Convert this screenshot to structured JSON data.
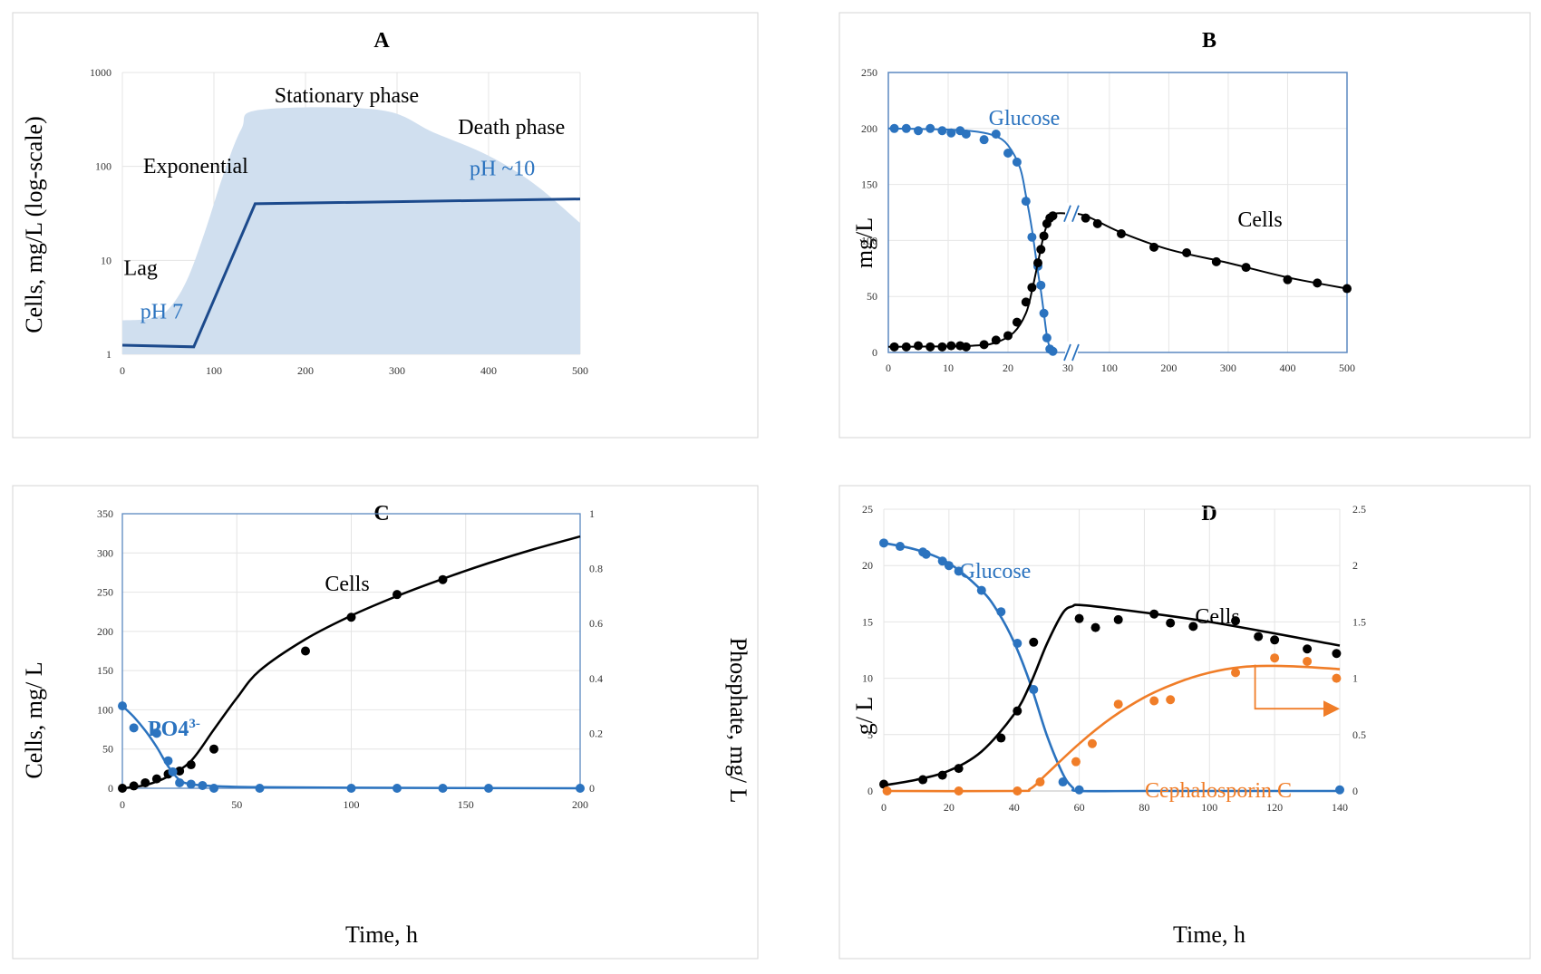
{
  "chart_data": [
    {
      "panel": "A",
      "type": "area",
      "title": "A",
      "ylabel": "Cells, mg/L (log-scale)",
      "xlabel": "",
      "yscale": "log",
      "xlim": [
        0,
        500
      ],
      "ylim": [
        1,
        1000
      ],
      "x_ticks": [
        "0",
        "100",
        "200",
        "300",
        "400",
        "500"
      ],
      "y_ticks": [
        "1",
        "10",
        "100",
        "1000"
      ],
      "series": [
        {
          "name": "growth envelope",
          "kind": "area",
          "color": "#d0dfef",
          "x": [
            0,
            30,
            50,
            70,
            90,
            110,
            130,
            150,
            280,
            340,
            400,
            450,
            500
          ],
          "y": [
            2.3,
            2.4,
            3,
            6,
            20,
            80,
            250,
            400,
            400,
            230,
            130,
            65,
            25
          ]
        },
        {
          "name": "pH",
          "kind": "line",
          "color": "#1c4a8c",
          "x": [
            0,
            78,
            145,
            500
          ],
          "y": [
            1.25,
            1.2,
            40,
            45
          ]
        }
      ],
      "annotations": [
        {
          "text": "Stationary phase",
          "x": 245,
          "y": 480,
          "style": "black"
        },
        {
          "text": "Death phase",
          "x": 425,
          "y": 220,
          "style": "black"
        },
        {
          "text": "Exponential",
          "x": 80,
          "y": 85,
          "style": "black"
        },
        {
          "text": "pH ~10",
          "x": 415,
          "y": 80,
          "style": "blue"
        },
        {
          "text": "Lag",
          "x": 20,
          "y": 7,
          "style": "black"
        },
        {
          "text": "pH 7",
          "x": 43,
          "y": 2.4,
          "style": "blue"
        }
      ]
    },
    {
      "panel": "B",
      "type": "scatter",
      "title": "B",
      "ylabel": "mg/L",
      "xlabel": "",
      "ylim": [
        0,
        250
      ],
      "broken_x_axis": true,
      "left_xlim": [
        0,
        30
      ],
      "right_xlim": [
        30,
        500
      ],
      "x_ticks_left": [
        "0",
        "10",
        "20",
        "30"
      ],
      "x_ticks_right": [
        "100",
        "200",
        "300",
        "400",
        "500"
      ],
      "y_ticks": [
        "0",
        "50",
        "100",
        "150",
        "200",
        "250"
      ],
      "series": [
        {
          "name": "Glucose",
          "color": "#2b73bf",
          "points_x": [
            1,
            3,
            5,
            7,
            9,
            10.5,
            12,
            13,
            16,
            18,
            20,
            21.5,
            23,
            24,
            25,
            25.5,
            26,
            26.5,
            27,
            27.5
          ],
          "points_y": [
            200,
            200,
            198,
            200,
            198,
            196,
            198,
            195,
            190,
            195,
            178,
            170,
            135,
            103,
            77,
            60,
            35,
            13,
            3,
            1
          ],
          "curve_x": [
            0,
            10,
            15,
            18,
            20,
            22,
            23,
            24,
            25,
            25.5,
            26,
            26.5,
            27,
            27.5
          ],
          "curve_y": [
            200,
            199,
            197,
            193,
            185,
            165,
            140,
            110,
            72,
            55,
            35,
            15,
            4,
            0
          ]
        },
        {
          "name": "Cells",
          "color": "#000000",
          "points_x": [
            1,
            3,
            5,
            7,
            9,
            10.5,
            12,
            13,
            16,
            18,
            20,
            21.5,
            23,
            24,
            25,
            25.5,
            26,
            26.5,
            27,
            27.5,
            60,
            80,
            120,
            175,
            230,
            280,
            330,
            400,
            450,
            500
          ],
          "points_y": [
            5,
            5,
            6,
            5,
            5,
            6,
            6,
            5,
            7,
            11,
            15,
            27,
            45,
            58,
            80,
            92,
            104,
            115,
            120,
            122,
            120,
            115,
            106,
            94,
            89,
            81,
            76,
            65,
            62,
            57
          ],
          "curve_x": [
            0,
            14,
            18,
            21,
            23,
            24,
            25,
            26,
            27,
            28,
            30,
            60,
            120,
            200,
            300,
            400,
            500
          ],
          "curve_y": [
            5,
            6,
            9,
            18,
            35,
            55,
            80,
            105,
            120,
            124,
            124,
            122,
            107,
            92,
            80,
            67,
            57
          ]
        }
      ],
      "annotations": [
        {
          "text": "Glucose",
          "style": "blue"
        },
        {
          "text": "Cells",
          "style": "black"
        },
        {
          "text": "//",
          "style": "blue"
        }
      ]
    },
    {
      "panel": "C",
      "type": "scatter",
      "title": "C",
      "ylabel": "Cells, mg/ L",
      "y2label": "Phosphate, mg/ L",
      "xlabel": "Time, h",
      "xlim": [
        0,
        200
      ],
      "ylim": [
        0,
        350
      ],
      "y2lim": [
        0,
        1
      ],
      "x_ticks": [
        "0",
        "50",
        "100",
        "150",
        "200"
      ],
      "y_ticks": [
        "0",
        "50",
        "100",
        "150",
        "200",
        "250",
        "300",
        "350"
      ],
      "y2_ticks": [
        "0",
        "0.2",
        "0.4",
        "0.6",
        "0.8",
        "1"
      ],
      "series": [
        {
          "name": "Cells",
          "axis": "left",
          "color": "#000000",
          "points_x": [
            0,
            5,
            10,
            15,
            20,
            25,
            30,
            40,
            80,
            100,
            120,
            140
          ],
          "points_y": [
            0,
            3,
            7,
            12,
            18,
            22,
            30,
            50,
            175,
            218,
            247,
            266
          ],
          "curve_x": [
            0,
            10,
            20,
            30,
            40,
            50,
            60,
            80,
            100,
            120,
            140,
            160,
            180,
            200
          ],
          "curve_y": [
            0,
            4,
            15,
            35,
            75,
            115,
            150,
            190,
            220,
            245,
            267,
            287,
            305,
            321
          ]
        },
        {
          "name": "PO4 3-",
          "axis": "right",
          "color": "#2b73bf",
          "points_x": [
            0,
            5,
            15,
            20,
            22,
            25,
            30,
            35,
            40,
            60,
            100,
            120,
            140,
            160,
            200
          ],
          "points_y": [
            0.3,
            0.22,
            0.2,
            0.1,
            0.06,
            0.02,
            0.015,
            0.01,
            0,
            0,
            0,
            0,
            0,
            0,
            0
          ],
          "curve_x": [
            0,
            5,
            10,
            15,
            20,
            25,
            30,
            40,
            60,
            100,
            200
          ],
          "curve_y": [
            0.3,
            0.26,
            0.21,
            0.15,
            0.08,
            0.03,
            0.015,
            0.008,
            0.004,
            0.002,
            0
          ]
        }
      ],
      "annotations": [
        {
          "text": "Cells",
          "style": "black"
        },
        {
          "text": "PO4",
          "sup": "3-",
          "style": "blue"
        }
      ]
    },
    {
      "panel": "D",
      "type": "scatter",
      "title": "D",
      "ylabel": "g/ L",
      "xlabel": "Time, h",
      "xlim": [
        0,
        140
      ],
      "ylim": [
        0,
        25
      ],
      "y2lim": [
        0,
        2.5
      ],
      "x_ticks": [
        "0",
        "20",
        "40",
        "60",
        "80",
        "100",
        "120",
        "140"
      ],
      "y_ticks": [
        "0",
        "5",
        "10",
        "15",
        "20",
        "25"
      ],
      "y2_ticks": [
        "0",
        "0.5",
        "1",
        "1.5",
        "2",
        "2.5"
      ],
      "series": [
        {
          "name": "Glucose",
          "axis": "left",
          "color": "#2b73bf",
          "points_x": [
            0,
            5,
            12,
            13,
            18,
            20,
            23,
            30,
            36,
            41,
            46,
            55,
            60,
            140
          ],
          "points_y": [
            22,
            21.7,
            21.2,
            21,
            20.4,
            20,
            19.5,
            17.8,
            15.9,
            13.1,
            9,
            0.8,
            0.1,
            0.1
          ],
          "curve_x": [
            0,
            10,
            20,
            30,
            35,
            40,
            45,
            50,
            55,
            58,
            60,
            80,
            140
          ],
          "curve_y": [
            22,
            21.4,
            20.2,
            17.8,
            15.9,
            13.2,
            9.5,
            5,
            1.5,
            0.3,
            0,
            0,
            0
          ]
        },
        {
          "name": "Cells",
          "axis": "left",
          "color": "#000000",
          "points_x": [
            0,
            12,
            18,
            23,
            36,
            41,
            46,
            60,
            65,
            72,
            83,
            88,
            95,
            108,
            115,
            120,
            130,
            139
          ],
          "points_y": [
            0.6,
            1,
            1.4,
            2,
            4.7,
            7.1,
            13.2,
            15.3,
            14.5,
            15.2,
            15.7,
            14.9,
            14.6,
            15.1,
            13.7,
            13.4,
            12.6,
            12.2
          ],
          "curve_x": [
            0,
            10,
            20,
            30,
            40,
            45,
            50,
            55,
            58,
            60,
            70,
            100,
            140
          ],
          "curve_y": [
            0.5,
            1,
            1.8,
            3.5,
            6.8,
            9.5,
            13,
            15.8,
            16.4,
            16.5,
            16.2,
            15,
            12.9
          ]
        },
        {
          "name": "Cephalosporin C",
          "axis": "right",
          "color": "#f07d28",
          "points_x": [
            1,
            23,
            41,
            48,
            59,
            64,
            72,
            83,
            88,
            108,
            120,
            130,
            139
          ],
          "points_y": [
            0,
            0,
            0,
            0.08,
            0.26,
            0.42,
            0.77,
            0.8,
            0.81,
            1.05,
            1.18,
            1.15,
            1
          ],
          "curve_x": [
            0,
            40,
            45,
            50,
            60,
            70,
            80,
            90,
            100,
            110,
            120,
            130,
            140
          ],
          "curve_y": [
            0,
            0,
            0.02,
            0.15,
            0.42,
            0.65,
            0.83,
            0.96,
            1.05,
            1.1,
            1.11,
            1.1,
            1.08
          ]
        }
      ],
      "annotations": [
        {
          "text": "Glucose",
          "style": "blue"
        },
        {
          "text": "Cells",
          "style": "black"
        },
        {
          "text": "Cephalosporin C",
          "style": "orange"
        }
      ]
    }
  ]
}
